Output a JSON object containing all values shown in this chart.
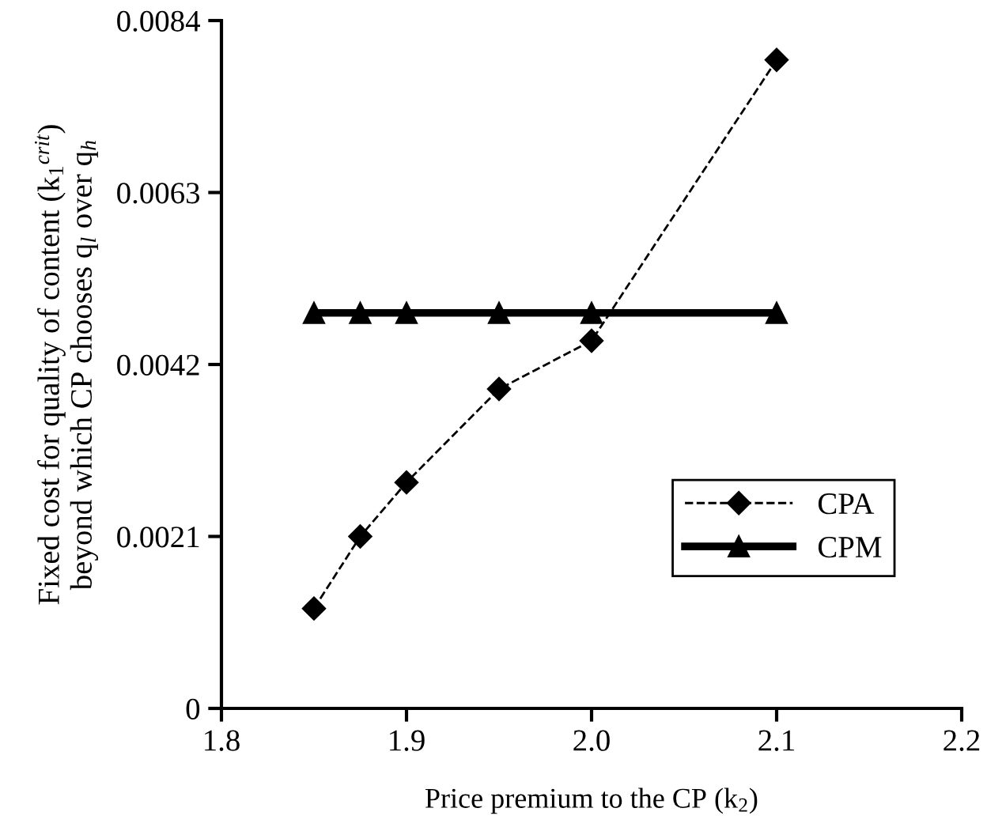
{
  "chart_data": {
    "type": "line",
    "xlabel": "Price premium to the CP (k$_{2}$)",
    "ylabel": "Fixed cost for quality of content (k$_{1}$$^{crit}$)\nbeyond which CP chooses q$_{l}$ over q$_{h}$",
    "x": [
      1.85,
      1.875,
      1.9,
      1.95,
      2.0,
      2.1
    ],
    "series": [
      {
        "name": "CPA",
        "color": "#000000",
        "values": [
          0.00122,
          0.0021,
          0.00276,
          0.0039,
          0.00449,
          0.00792
        ],
        "marker": "diamond",
        "line_style": "dashed"
      },
      {
        "name": "CPM",
        "color": "#000000",
        "values": [
          0.00483,
          0.00483,
          0.00483,
          0.00483,
          0.00483,
          0.00483
        ],
        "marker": "triangle",
        "line_style": "solid"
      }
    ],
    "xlim": [
      1.8,
      2.2
    ],
    "xticks": [
      {
        "value": 1.8,
        "label": "1.8"
      },
      {
        "value": 1.9,
        "label": "1.9"
      },
      {
        "value": 2.0,
        "label": "2.0"
      },
      {
        "value": 2.1,
        "label": "2.1"
      },
      {
        "value": 2.2,
        "label": "2.2"
      }
    ],
    "ylim": [
      0,
      0.0084
    ],
    "yticks": [
      0,
      0.0021,
      0.0042,
      0.0063,
      0.0084
    ],
    "grid": false,
    "legend": "bottom right"
  }
}
